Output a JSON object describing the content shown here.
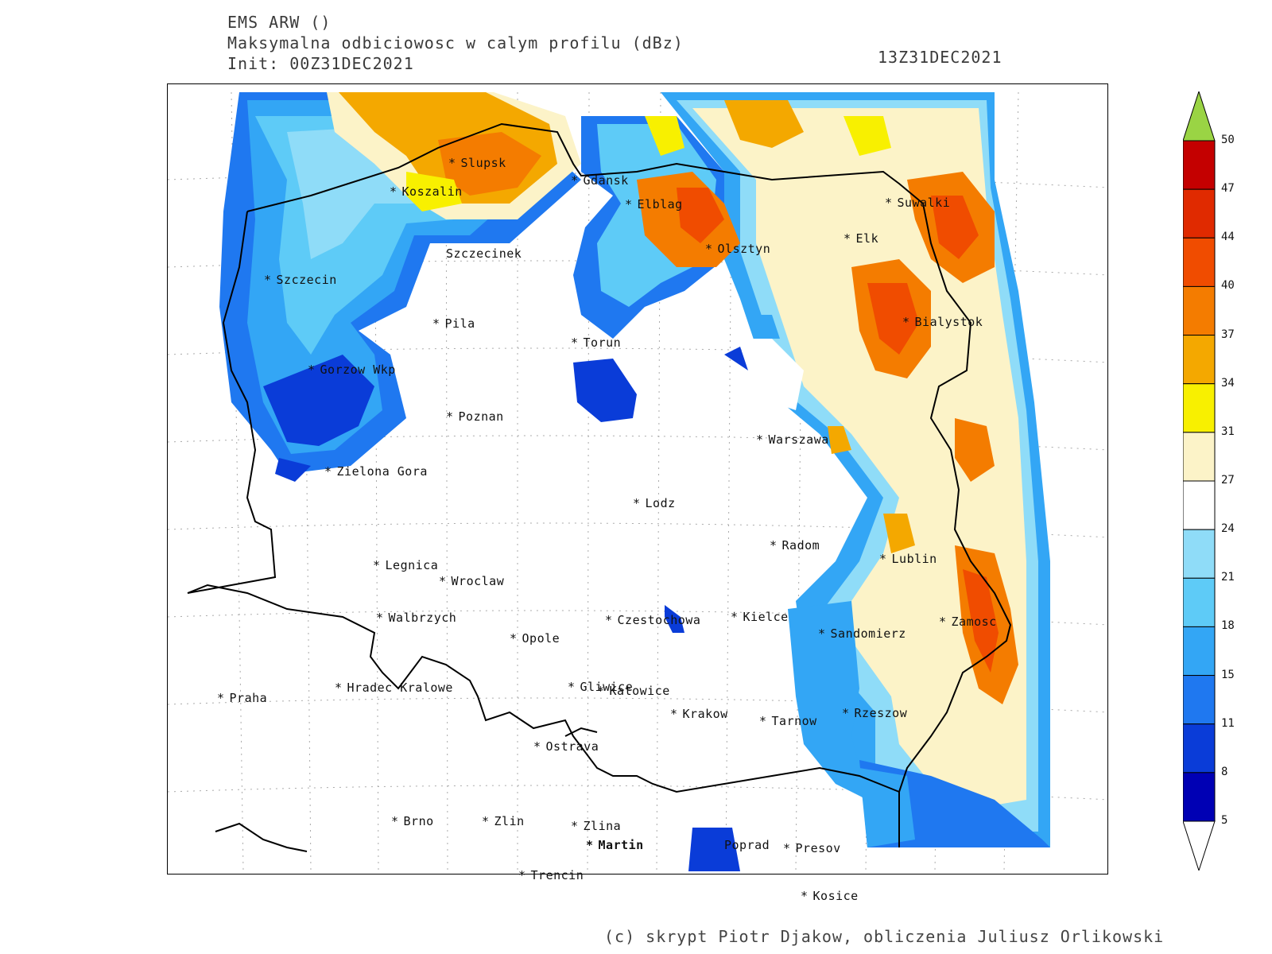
{
  "header": {
    "model": "EMS ARW ()",
    "field": "Maksymalna odbiciowosc w calym profilu (dBz)",
    "init": "Init: 00Z31DEC2021",
    "valid": "13Z31DEC2021"
  },
  "cities": [
    {
      "name": "Slupsk"
    },
    {
      "name": "Koszalin"
    },
    {
      "name": "Gdansk"
    },
    {
      "name": "Elblag"
    },
    {
      "name": "Suwalki"
    },
    {
      "name": "Elk"
    },
    {
      "name": "Olsztyn"
    },
    {
      "name": "Szczecinek"
    },
    {
      "name": "Szczecin"
    },
    {
      "name": "Pila"
    },
    {
      "name": "Torun"
    },
    {
      "name": "Bialystok"
    },
    {
      "name": "Gorzow Wkp"
    },
    {
      "name": "Poznan"
    },
    {
      "name": "Warszawa"
    },
    {
      "name": "Zielona Gora"
    },
    {
      "name": "Lodz"
    },
    {
      "name": "Radom"
    },
    {
      "name": "Lublin"
    },
    {
      "name": "Legnica"
    },
    {
      "name": "Wroclaw"
    },
    {
      "name": "Walbrzych"
    },
    {
      "name": "Czestochowa"
    },
    {
      "name": "Kielce"
    },
    {
      "name": "Zamosc"
    },
    {
      "name": "Opole"
    },
    {
      "name": "Sandomierz"
    },
    {
      "name": "Praha"
    },
    {
      "name": "Hradec Kralowe"
    },
    {
      "name": "Gliwice"
    },
    {
      "name": "Katowice"
    },
    {
      "name": "Krakow"
    },
    {
      "name": "Tarnow"
    },
    {
      "name": "Rzeszow"
    },
    {
      "name": "Ostrava"
    },
    {
      "name": "Brno"
    },
    {
      "name": "Zlin"
    },
    {
      "name": "Zlina"
    },
    {
      "name": "Martin"
    },
    {
      "name": "Poprad"
    },
    {
      "name": "Presov"
    },
    {
      "name": "Trencin"
    },
    {
      "name": "Kosice"
    }
  ],
  "legend": {
    "labels": [
      "5",
      "8",
      "11",
      "15",
      "18",
      "21",
      "24",
      "27",
      "31",
      "34",
      "37",
      "40",
      "44",
      "47",
      "50"
    ],
    "colors": [
      "#0000b4",
      "#0a3cd8",
      "#1f78f0",
      "#33a6f5",
      "#5ecbf7",
      "#8fdcf8",
      "#ffffff",
      "#fcf3c8",
      "#f8f000",
      "#f4a800",
      "#f47c00",
      "#f04c00",
      "#e02a00",
      "#c40000",
      "#9ad444"
    ]
  },
  "footer": "(c) skrypt Piotr Djakow, obliczenia Juliusz Orlikowski"
}
